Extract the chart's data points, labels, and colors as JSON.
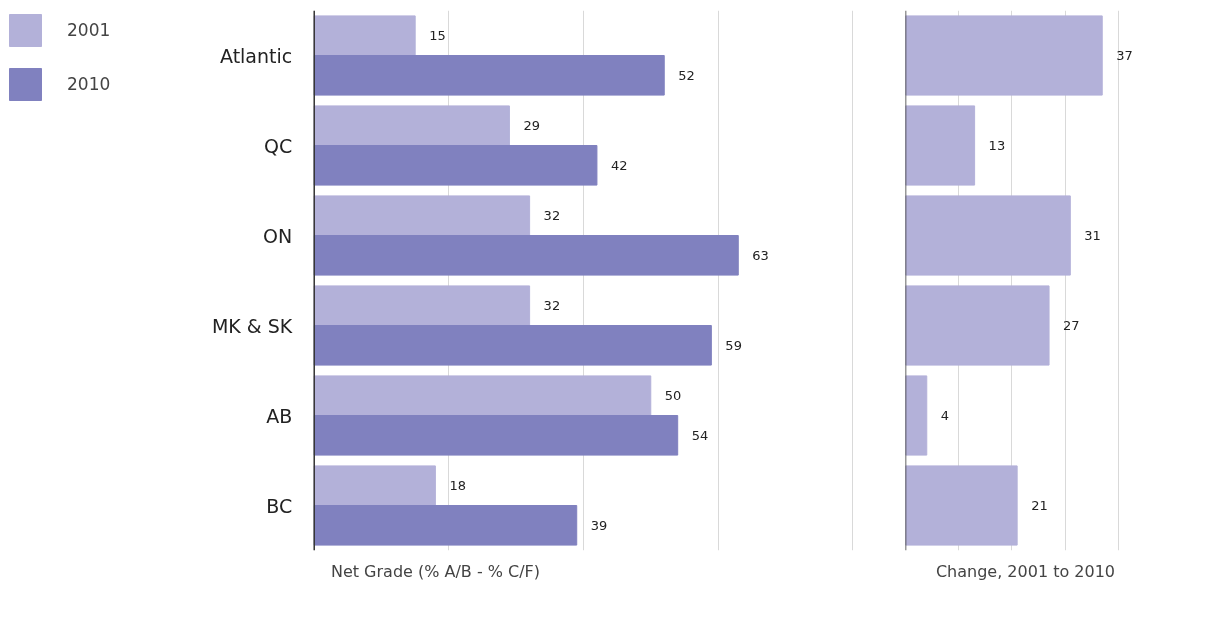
{
  "chart_data": [
    {
      "type": "bar",
      "orientation": "horizontal",
      "xlabel": "Net Grade (% A/B - % C/F)",
      "categories": [
        "Atlantic",
        "QC",
        "ON",
        "MK & SK",
        "AB",
        "BC"
      ],
      "series": [
        {
          "name": "2001",
          "color": "#b3b1d9",
          "values": [
            15,
            29,
            32,
            32,
            50,
            18
          ]
        },
        {
          "name": "2010",
          "color": "#8081bf",
          "values": [
            52,
            42,
            63,
            59,
            54,
            39
          ]
        }
      ],
      "grid": "x",
      "legend": "top left",
      "data_labels": true,
      "tick_labels": "y"
    },
    {
      "type": "bar",
      "orientation": "horizontal",
      "xlabel": "Change, 2001 to 2010",
      "categories": [
        null,
        null,
        null,
        null,
        null,
        null
      ],
      "series": [
        {
          "color": "#b3b1d9",
          "values": [
            37,
            13,
            31,
            27,
            4,
            21
          ]
        }
      ],
      "grid": "x",
      "data_labels": true,
      "tick_labels": false
    }
  ]
}
